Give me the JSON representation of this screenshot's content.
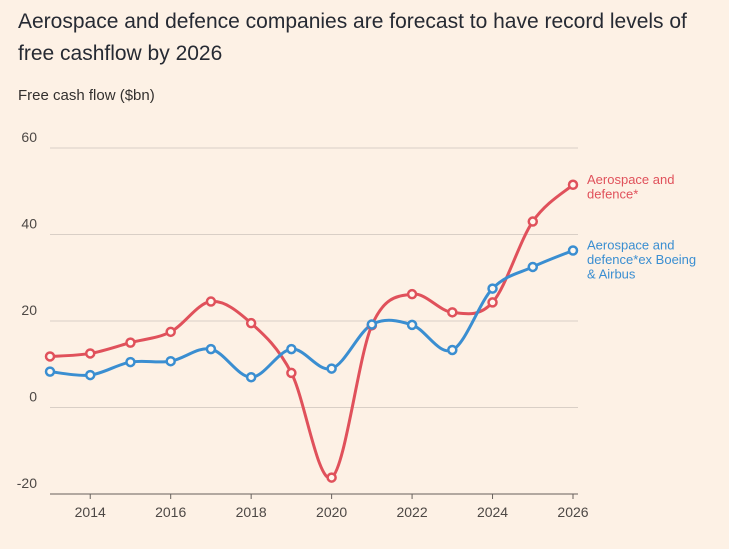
{
  "chart_data": {
    "type": "line",
    "title": "Aerospace and defence companies are forecast to have record levels of free cashflow by 2026",
    "ylabel": "Free cash flow ($bn)",
    "xlabel": "",
    "x": [
      2013,
      2014,
      2015,
      2016,
      2017,
      2018,
      2019,
      2020,
      2021,
      2022,
      2023,
      2024,
      2025,
      2026
    ],
    "xlim": [
      2013,
      2026
    ],
    "ylim": [
      -20,
      60
    ],
    "x_ticks": [
      2014,
      2016,
      2018,
      2020,
      2022,
      2024,
      2026
    ],
    "y_ticks": [
      -20,
      0,
      20,
      40,
      60
    ],
    "grid": "horizontal",
    "legend": "direct-labels-right",
    "series": [
      {
        "name": "Aerospace and defence*",
        "label_lines": [
          "Aerospace and",
          "defence*"
        ],
        "color": "#e0515b",
        "values": [
          11.8,
          12.5,
          15.0,
          17.5,
          24.5,
          19.5,
          8.0,
          -16.2,
          19.0,
          26.2,
          22.0,
          24.3,
          43.0,
          51.5
        ]
      },
      {
        "name": "Aerospace and defence*ex Boeing & Airbus",
        "label_lines": [
          "Aerospace and",
          "defence*ex Boeing",
          "& Airbus"
        ],
        "color": "#3a8ed1",
        "values": [
          8.3,
          7.5,
          10.5,
          10.7,
          13.5,
          7.0,
          13.5,
          9.0,
          19.2,
          19.1,
          13.3,
          27.5,
          32.5,
          36.3
        ]
      }
    ]
  }
}
